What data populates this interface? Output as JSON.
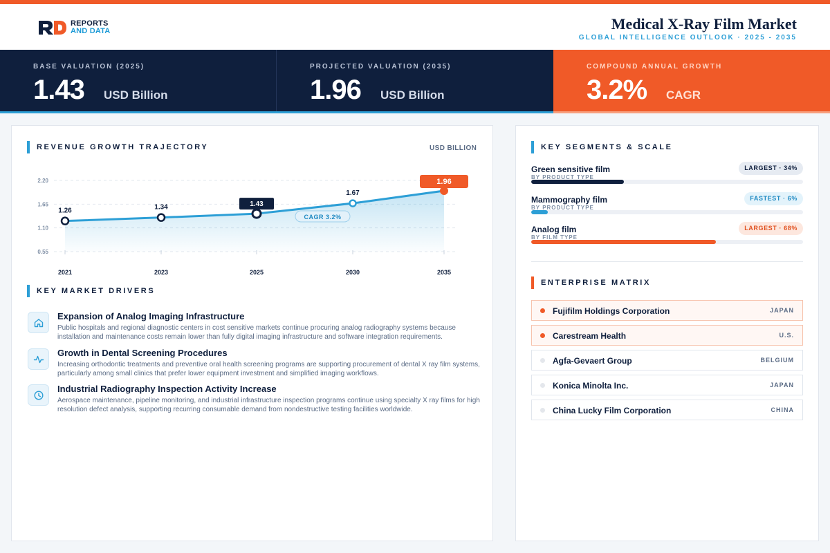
{
  "header": {
    "logo_line1": "REPORTS",
    "logo_line2": "AND DATA",
    "title": "Medical X-Ray Film Market",
    "subtitle": "GLOBAL INTELLIGENCE OUTLOOK  ·  2025 - 2035"
  },
  "kpis": [
    {
      "label": "BASE VALUATION (2025)",
      "value": "1.43",
      "unit": "USD Billion"
    },
    {
      "label": "PROJECTED VALUATION (2035)",
      "value": "1.96",
      "unit": "USD Billion"
    },
    {
      "label": "COMPOUND ANNUAL GROWTH",
      "value": "3.2%",
      "unit": "CAGR"
    }
  ],
  "revenue": {
    "title": "REVENUE GROWTH TRAJECTORY",
    "unit_label": "USD BILLION"
  },
  "chart_data": {
    "type": "area",
    "title": "REVENUE GROWTH TRAJECTORY",
    "ylabel": "USD BILLION",
    "x": [
      "2021",
      "2023",
      "2025",
      "2030",
      "2035"
    ],
    "series": [
      {
        "values": [
          1.26,
          1.34,
          1.43,
          1.67,
          1.96
        ]
      }
    ],
    "data_labels": [
      "1.26",
      "1.34",
      "1.43",
      "1.67",
      "1.96"
    ],
    "yticks": [
      "2.20",
      "1.65",
      "1.10",
      "0.55"
    ],
    "ylim": [
      0.55,
      2.2
    ],
    "grid": true,
    "annotation": "CAGR 3.2%"
  },
  "drivers": {
    "title": "KEY MARKET DRIVERS",
    "items": [
      {
        "icon": "home-icon",
        "title": "Expansion of Analog Imaging Infrastructure",
        "desc": "Public hospitals and regional diagnostic centers in cost sensitive markets continue procuring analog radiography systems because installation and maintenance costs remain lower than fully digital imaging infrastructure and software integration requirements."
      },
      {
        "icon": "pulse-icon",
        "title": "Growth in Dental Screening Procedures",
        "desc": "Increasing orthodontic treatments and preventive oral health screening programs are supporting procurement of dental X ray film systems, particularly among small clinics that prefer lower equipment investment and simplified imaging workflows."
      },
      {
        "icon": "clock-icon",
        "title": "Industrial Radiography Inspection Activity Increase",
        "desc": "Aerospace maintenance, pipeline monitoring, and industrial infrastructure inspection programs continue using specialty X ray films for high resolution defect analysis, supporting recurring consumable demand from nondestructive testing facilities worldwide."
      }
    ]
  },
  "segments": {
    "title": "KEY SEGMENTS & SCALE",
    "items": [
      {
        "name": "Green sensitive film",
        "type": "BY PRODUCT TYPE",
        "badge": "LARGEST · 34%",
        "share": 34,
        "color": "#0f1f3d"
      },
      {
        "name": "Mammography film",
        "type": "BY PRODUCT TYPE",
        "badge": "FASTEST · 6%",
        "share": 6,
        "color": "#2d9fd6"
      },
      {
        "name": "Analog film",
        "type": "BY FILM TYPE",
        "badge": "LARGEST · 68%",
        "share": 68,
        "color": "#f05a28"
      }
    ]
  },
  "enterprise": {
    "title": "ENTERPRISE MATRIX",
    "items": [
      {
        "name": "Fujifilm Holdings Corporation",
        "country": "JAPAN",
        "highlight": true
      },
      {
        "name": "Carestream Health",
        "country": "U.S.",
        "highlight": true
      },
      {
        "name": "Agfa-Gevaert Group",
        "country": "BELGIUM",
        "highlight": false
      },
      {
        "name": "Konica Minolta Inc.",
        "country": "JAPAN",
        "highlight": false
      },
      {
        "name": "China Lucky Film Corporation",
        "country": "CHINA",
        "highlight": false
      }
    ]
  },
  "colors": {
    "navy": "#0f1f3d",
    "accent_blue": "#2d9fd6",
    "accent_orange": "#f05a28"
  }
}
